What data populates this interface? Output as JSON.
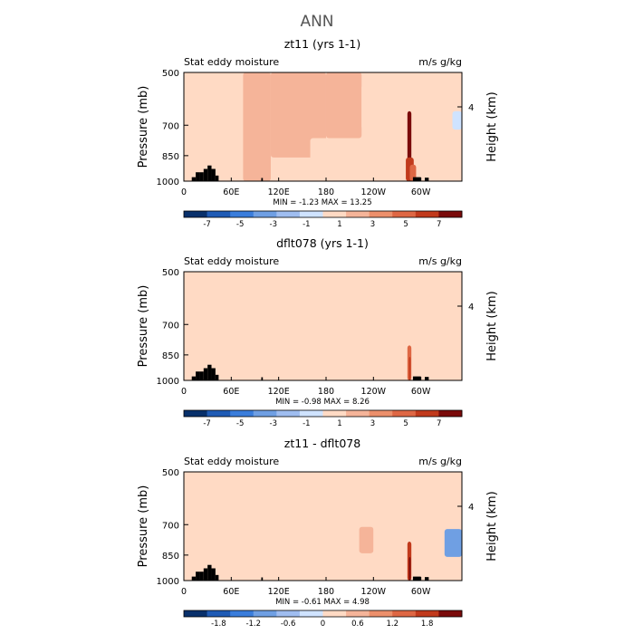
{
  "main_title": "ANN",
  "chart_data": [
    {
      "type": "heatmap",
      "title": "zt11 (yrs 1-1)",
      "field_label": "Stat eddy moisture",
      "units": "m/s g/kg",
      "ylabel": "Pressure (mb)",
      "y2label": "Height (km)",
      "yticks": [
        "500",
        "700",
        "850",
        "1000"
      ],
      "y2ticks": [
        "4"
      ],
      "xticks": [
        "0",
        "60E",
        "120E",
        "180",
        "120W",
        "60W"
      ],
      "stats": "MIN =   -1.23   MAX =   13.25",
      "colorbar_ticks": [
        "-7",
        "-5",
        "-3",
        "-1",
        "1",
        "3",
        "5",
        "7"
      ],
      "regions": [
        {
          "lon": [
            25,
            40
          ],
          "p": [
            580,
            1000
          ],
          "bin": 6
        },
        {
          "lon": [
            35,
            75
          ],
          "p": [
            500,
            900
          ],
          "bin": 6
        },
        {
          "lon": [
            75,
            110
          ],
          "p": [
            500,
            1000
          ],
          "bin": 7
        },
        {
          "lon": [
            110,
            180
          ],
          "p": [
            500,
            860
          ],
          "bin": 7
        },
        {
          "lon": [
            180,
            225
          ],
          "p": [
            500,
            760
          ],
          "bin": 7
        },
        {
          "lon": [
            160,
            230
          ],
          "p": [
            760,
            950
          ],
          "bin": 6
        },
        {
          "lon": [
            225,
            285
          ],
          "p": [
            540,
            720
          ],
          "bin": 6
        },
        {
          "lon": [
            235,
            283
          ],
          "p": [
            740,
            980
          ],
          "bin": 6
        },
        {
          "lon": [
            295,
            345
          ],
          "p": [
            500,
            960
          ],
          "bin": 6
        },
        {
          "lon": [
            340,
            352
          ],
          "p": [
            640,
            720
          ],
          "bin": 5
        },
        {
          "lon": [
            283,
            288
          ],
          "p": [
            640,
            1000
          ],
          "bin": 11
        },
        {
          "lon": [
            281,
            291
          ],
          "p": [
            860,
            1000
          ],
          "bin": 10
        },
        {
          "lon": [
            286,
            294
          ],
          "p": [
            900,
            1000
          ],
          "bin": 9
        }
      ]
    },
    {
      "type": "heatmap",
      "title": "dflt078 (yrs 1-1)",
      "field_label": "Stat eddy moisture",
      "units": "m/s g/kg",
      "ylabel": "Pressure (mb)",
      "y2label": "Height (km)",
      "yticks": [
        "500",
        "700",
        "850",
        "1000"
      ],
      "y2ticks": [
        "4"
      ],
      "xticks": [
        "0",
        "60E",
        "120E",
        "180",
        "120W",
        "60W"
      ],
      "stats": "MIN =   -0.98   MAX =   8.26",
      "colorbar_ticks": [
        "-7",
        "-5",
        "-3",
        "-1",
        "1",
        "3",
        "5",
        "7"
      ],
      "regions": [
        {
          "lon": [
            0,
            45
          ],
          "p": [
            500,
            700
          ],
          "bin": 6
        },
        {
          "lon": [
            5,
            40
          ],
          "p": [
            700,
            960
          ],
          "bin": 6
        },
        {
          "lon": [
            40,
            80
          ],
          "p": [
            520,
            1000
          ],
          "bin": 6
        },
        {
          "lon": [
            130,
            175
          ],
          "p": [
            780,
            960
          ],
          "bin": 6
        },
        {
          "lon": [
            175,
            230
          ],
          "p": [
            520,
            960
          ],
          "bin": 6
        },
        {
          "lon": [
            280,
            310
          ],
          "p": [
            820,
            1000
          ],
          "bin": 6
        },
        {
          "lon": [
            315,
            345
          ],
          "p": [
            500,
            1000
          ],
          "bin": 6
        },
        {
          "lon": [
            283,
            288
          ],
          "p": [
            800,
            1000
          ],
          "bin": 9
        },
        {
          "lon": [
            285,
            287
          ],
          "p": [
            860,
            1000
          ],
          "bin": 10
        }
      ]
    },
    {
      "type": "heatmap",
      "title": "zt11 - dflt078",
      "field_label": "Stat eddy moisture",
      "units": "m/s g/kg",
      "ylabel": "Pressure (mb)",
      "y2label": "Height (km)",
      "yticks": [
        "500",
        "700",
        "850",
        "1000"
      ],
      "y2ticks": [
        "4"
      ],
      "xticks": [
        "0",
        "60E",
        "120E",
        "180",
        "120W",
        "60W"
      ],
      "stats": "MIN =   -0.61   MAX =   4.98",
      "colorbar_ticks": [
        "-1.8",
        "-1.2",
        "-0.6",
        "0",
        "0.6",
        "1.2",
        "1.8"
      ],
      "regions": [
        {
          "lon": [
            0,
            35
          ],
          "p": [
            540,
            860
          ],
          "bin": 6
        },
        {
          "lon": [
            40,
            80
          ],
          "p": [
            500,
            1000
          ],
          "bin": 6
        },
        {
          "lon": [
            80,
            150
          ],
          "p": [
            740,
            900
          ],
          "bin": 6
        },
        {
          "lon": [
            150,
            270
          ],
          "p": [
            500,
            1000
          ],
          "bin": 6
        },
        {
          "lon": [
            222,
            240
          ],
          "p": [
            710,
            840
          ],
          "bin": 7
        },
        {
          "lon": [
            240,
            275
          ],
          "p": [
            580,
            900
          ],
          "bin": 6
        },
        {
          "lon": [
            300,
            330
          ],
          "p": [
            500,
            1000
          ],
          "bin": 6
        },
        {
          "lon": [
            330,
            352
          ],
          "p": [
            720,
            860
          ],
          "bin": 3
        },
        {
          "lon": [
            283,
            288
          ],
          "p": [
            780,
            1000
          ],
          "bin": 10
        },
        {
          "lon": [
            285,
            287
          ],
          "p": [
            860,
            1000
          ],
          "bin": 11
        }
      ]
    }
  ],
  "topography": [
    {
      "lon": [
        10,
        15
      ],
      "p": 975
    },
    {
      "lon": [
        15,
        20
      ],
      "p": 945
    },
    {
      "lon": [
        20,
        25
      ],
      "p": 945
    },
    {
      "lon": [
        25,
        30
      ],
      "p": 925
    },
    {
      "lon": [
        30,
        35
      ],
      "p": 905
    },
    {
      "lon": [
        35,
        40
      ],
      "p": 925
    },
    {
      "lon": [
        40,
        44
      ],
      "p": 965
    },
    {
      "lon": [
        98,
        100
      ],
      "p": 980
    },
    {
      "lon": [
        290,
        300
      ],
      "p": 975
    },
    {
      "lon": [
        305,
        310
      ],
      "p": 978
    }
  ],
  "colors": {
    "background_bin": "#ffdac4",
    "levels": [
      "#08306b",
      "#1f5bb5",
      "#3a7ddb",
      "#6f9fe3",
      "#9fbdf0",
      "#cfe3ff",
      "#ffdac4",
      "#f5b499",
      "#ec8f6b",
      "#de6744",
      "#c13a1c",
      "#7a0a0a"
    ]
  }
}
